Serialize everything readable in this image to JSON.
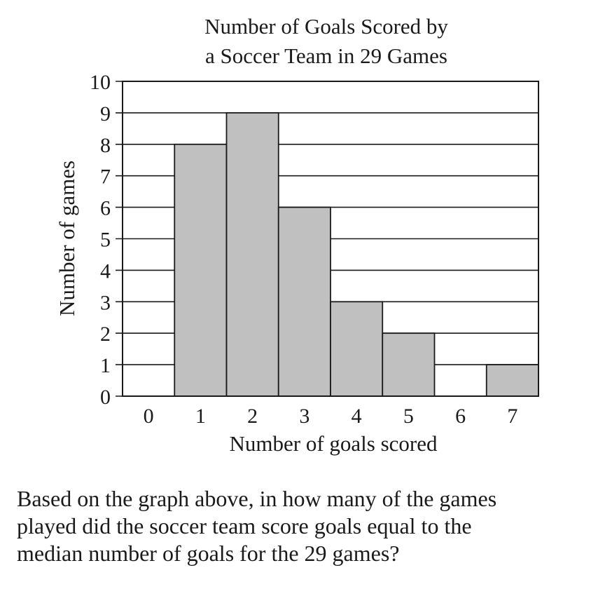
{
  "chart_data": {
    "type": "bar",
    "title_lines": [
      "Number of Goals Scored by",
      "a Soccer Team in 29 Games"
    ],
    "xlabel": "Number of goals scored",
    "ylabel": "Number of games",
    "categories": [
      "0",
      "1",
      "2",
      "3",
      "4",
      "5",
      "6",
      "7"
    ],
    "values": [
      0,
      8,
      9,
      6,
      3,
      2,
      0,
      1
    ],
    "ylim": [
      0,
      10
    ],
    "yticks": [
      "0",
      "1",
      "2",
      "3",
      "4",
      "5",
      "6",
      "7",
      "8",
      "9",
      "10"
    ],
    "grid": true,
    "bar_color": "#c0c0c0",
    "line_color": "#1a1a1a"
  },
  "question": {
    "lines": [
      "Based on the graph above, in how many of the games",
      "played did the soccer team score goals equal to the",
      "median number of goals for the 29 games?"
    ]
  }
}
